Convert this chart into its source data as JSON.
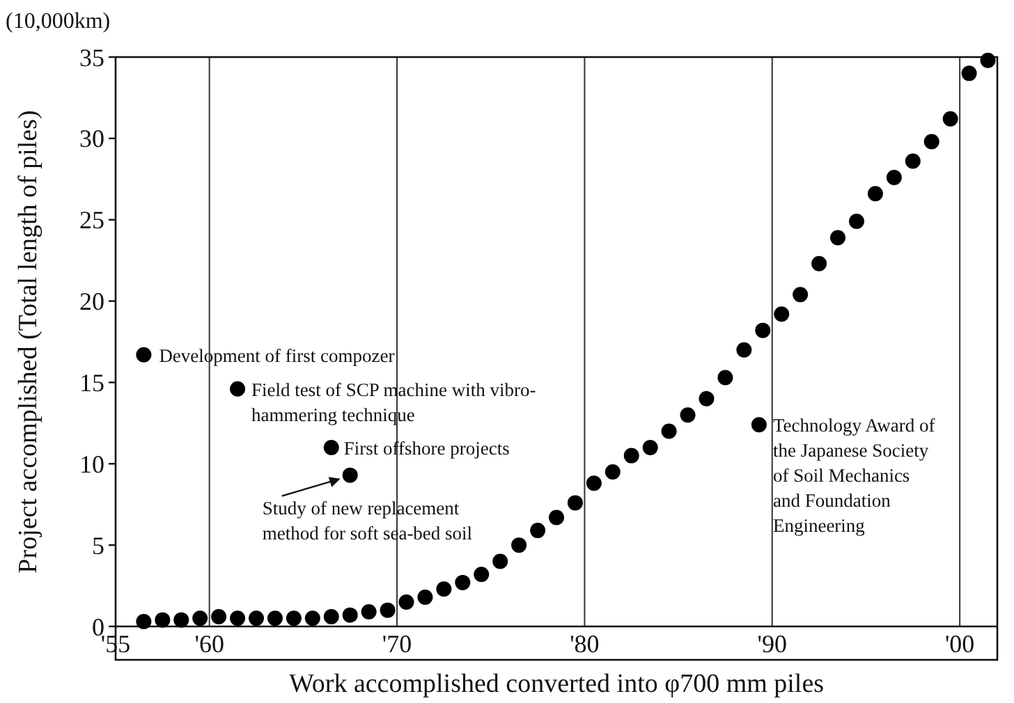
{
  "chart_data": {
    "type": "scatter",
    "xlabel": "Work accomplished converted into φ700 mm piles",
    "ylabel": "Project accomplished (Total length of piles)",
    "annotations": [
      "(10,000km)",
      {
        "text": "Development of first compozer",
        "x": 1956.5,
        "y": 16.7
      },
      {
        "text": "Field test of SCP machine with vibro-hammering technique",
        "x": 1961.5,
        "y": 14.6
      },
      {
        "text": "First offshore projects",
        "x": 1966.5,
        "y": 11.0
      },
      {
        "text": "Study of new replacement method for soft sea-bed soil",
        "x": 1967.5,
        "y": 9.3
      },
      {
        "text": "Technology Award of the Japanese Society of Soil Mechanics and Foundation Engineering",
        "x": 1989.3,
        "y": 12.4
      }
    ],
    "series": [
      {
        "color": "#000000",
        "x": [
          1956.5,
          1957.5,
          1958.5,
          1959.5,
          1960.5,
          1961.5,
          1962.5,
          1963.5,
          1964.5,
          1965.5,
          1966.5,
          1967.5,
          1968.5,
          1969.5,
          1970.5,
          1971.5,
          1972.5,
          1973.5,
          1974.5,
          1975.5,
          1976.5,
          1977.5,
          1978.5,
          1979.5,
          1980.5,
          1981.5,
          1982.5,
          1983.5,
          1984.5,
          1985.5,
          1986.5,
          1987.5,
          1988.5,
          1989.5,
          1990.5,
          1991.5,
          1992.5,
          1993.5,
          1994.5,
          1995.5,
          1996.5,
          1997.5,
          1998.5,
          1999.5,
          2000.5,
          2001.5
        ],
        "values": [
          0.3,
          0.4,
          0.4,
          0.5,
          0.6,
          0.5,
          0.5,
          0.5,
          0.5,
          0.5,
          0.6,
          0.7,
          0.9,
          1.0,
          1.5,
          1.8,
          2.3,
          2.7,
          3.2,
          4.0,
          5.0,
          5.9,
          6.7,
          7.6,
          8.8,
          9.5,
          10.5,
          11.0,
          12.0,
          13.0,
          14.0,
          15.3,
          17.0,
          18.2,
          19.2,
          20.4,
          22.3,
          23.9,
          24.9,
          26.6,
          27.6,
          28.6,
          29.8,
          31.2,
          34.0,
          34.8
        ]
      },
      {
        "color": "#000000",
        "x": [
          1956.5,
          1961.5,
          1966.5,
          1967.5,
          1989.3
        ],
        "values": [
          16.7,
          14.6,
          11.0,
          9.3,
          12.4
        ]
      }
    ],
    "xlim": [
      1955,
      2002
    ],
    "xticks": [
      {
        "value": 1955,
        "label": "'55"
      },
      {
        "value": 1960,
        "label": "'60"
      },
      {
        "value": 1970,
        "label": "'70"
      },
      {
        "value": 1980,
        "label": "'80"
      },
      {
        "value": 1990,
        "label": "'90"
      },
      {
        "value": 2000,
        "label": "'00"
      }
    ],
    "ylim": [
      0,
      35
    ],
    "yticks": [
      0,
      5,
      10,
      15,
      20,
      25,
      30,
      35
    ],
    "grid": "x",
    "marker": "circle"
  }
}
